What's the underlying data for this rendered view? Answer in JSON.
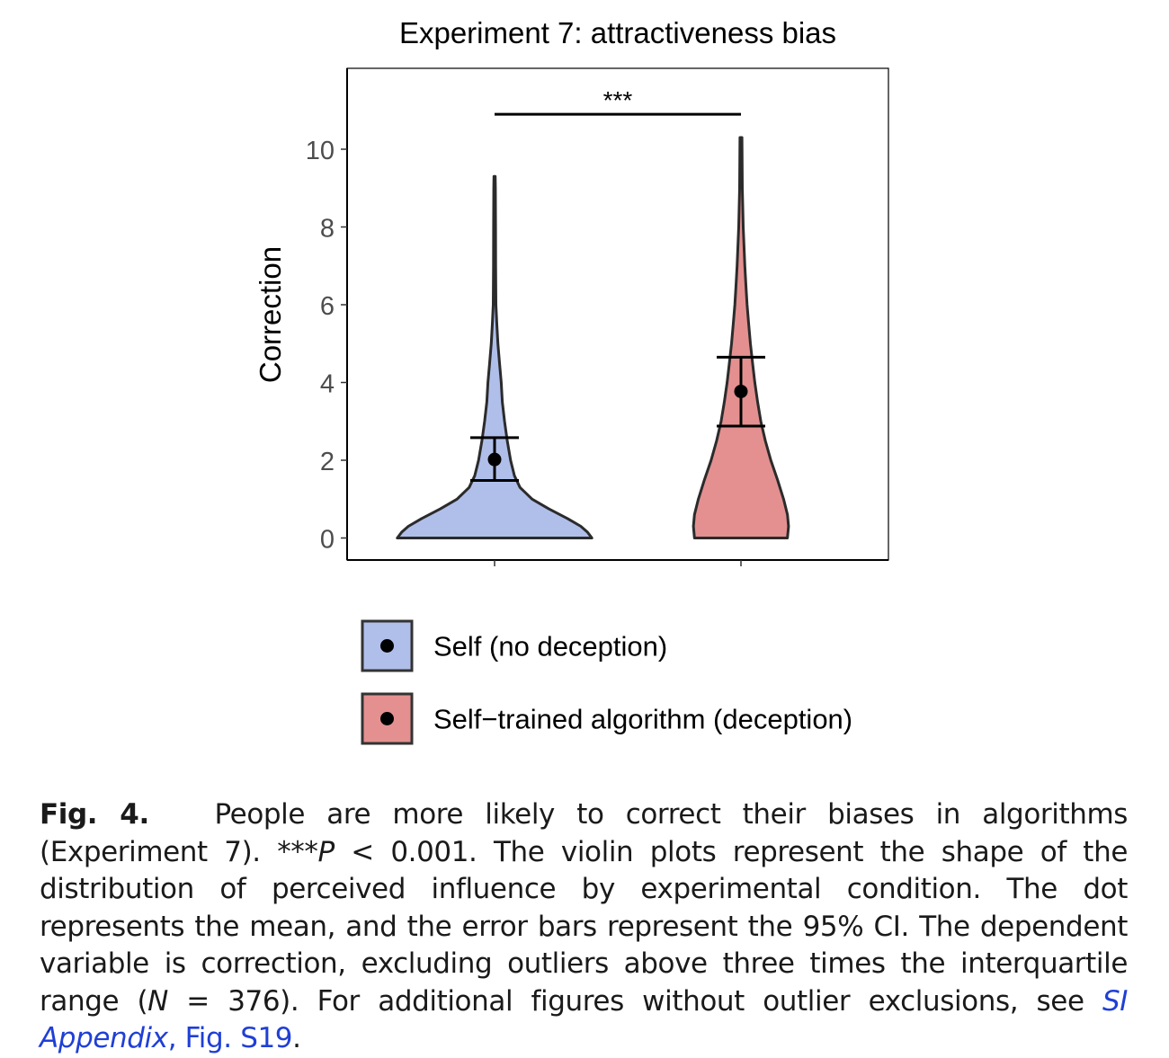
{
  "chart_data": {
    "type": "violin",
    "title": "Experiment 7: attractiveness bias",
    "xlabel": "",
    "ylabel": "Correction",
    "ylim": [
      -0.5,
      12
    ],
    "yticks": [
      0,
      2,
      4,
      6,
      8,
      10
    ],
    "grid": false,
    "legend_position": "bottom",
    "significance": {
      "label": "***",
      "from": 0,
      "to": 1,
      "y": 10.9
    },
    "series": [
      {
        "name": "Self (no deception)",
        "color": "#b0bfea",
        "mean": 2.02,
        "ci": [
          1.48,
          2.58
        ],
        "max": 9.3,
        "profile": [
          [
            0,
            0.88
          ],
          [
            0.15,
            0.84
          ],
          [
            0.3,
            0.78
          ],
          [
            0.5,
            0.66
          ],
          [
            0.75,
            0.49
          ],
          [
            1.0,
            0.34
          ],
          [
            1.3,
            0.23
          ],
          [
            1.6,
            0.18
          ],
          [
            2.0,
            0.145
          ],
          [
            2.5,
            0.115
          ],
          [
            3.0,
            0.09
          ],
          [
            3.5,
            0.07
          ],
          [
            4.0,
            0.06
          ],
          [
            4.5,
            0.045
          ],
          [
            5.0,
            0.03
          ],
          [
            5.5,
            0.02
          ],
          [
            6.0,
            0.012
          ],
          [
            7.0,
            0.01
          ],
          [
            8.0,
            0.009
          ],
          [
            9.0,
            0.007
          ],
          [
            9.3,
            0.006
          ]
        ]
      },
      {
        "name": "Self−trained algorithm (deception)",
        "color": "#e49090",
        "mean": 3.77,
        "ci": [
          2.88,
          4.65
        ],
        "max": 10.3,
        "profile": [
          [
            0,
            0.42
          ],
          [
            0.3,
            0.43
          ],
          [
            0.6,
            0.42
          ],
          [
            1.0,
            0.385
          ],
          [
            1.5,
            0.33
          ],
          [
            2.0,
            0.27
          ],
          [
            2.5,
            0.22
          ],
          [
            3.0,
            0.18
          ],
          [
            3.5,
            0.15
          ],
          [
            4.0,
            0.125
          ],
          [
            4.5,
            0.105
          ],
          [
            5.0,
            0.085
          ],
          [
            5.5,
            0.07
          ],
          [
            6.0,
            0.055
          ],
          [
            6.5,
            0.045
          ],
          [
            7.0,
            0.035
          ],
          [
            8.0,
            0.02
          ],
          [
            9.0,
            0.012
          ],
          [
            10.0,
            0.01
          ],
          [
            10.3,
            0.009
          ]
        ]
      }
    ]
  },
  "caption": {
    "label": "Fig. 4.",
    "text1": "People are more likely to correct their biases in algorithms (Experiment 7). ***",
    "p": "P",
    "text2": " < 0.001. The violin plots represent the shape of the distribution of perceived influence by experimental condition. The dot represents the mean, and the error bars represent the 95% CI. The dependent variable is correction, excluding outliers above three times the interquartile range (",
    "n": "N",
    "text3": " = 376). For additional figures without outlier exclusions, see ",
    "link_si": "SI Appendix",
    "link_fig": ", Fig. S19",
    "end": "."
  }
}
